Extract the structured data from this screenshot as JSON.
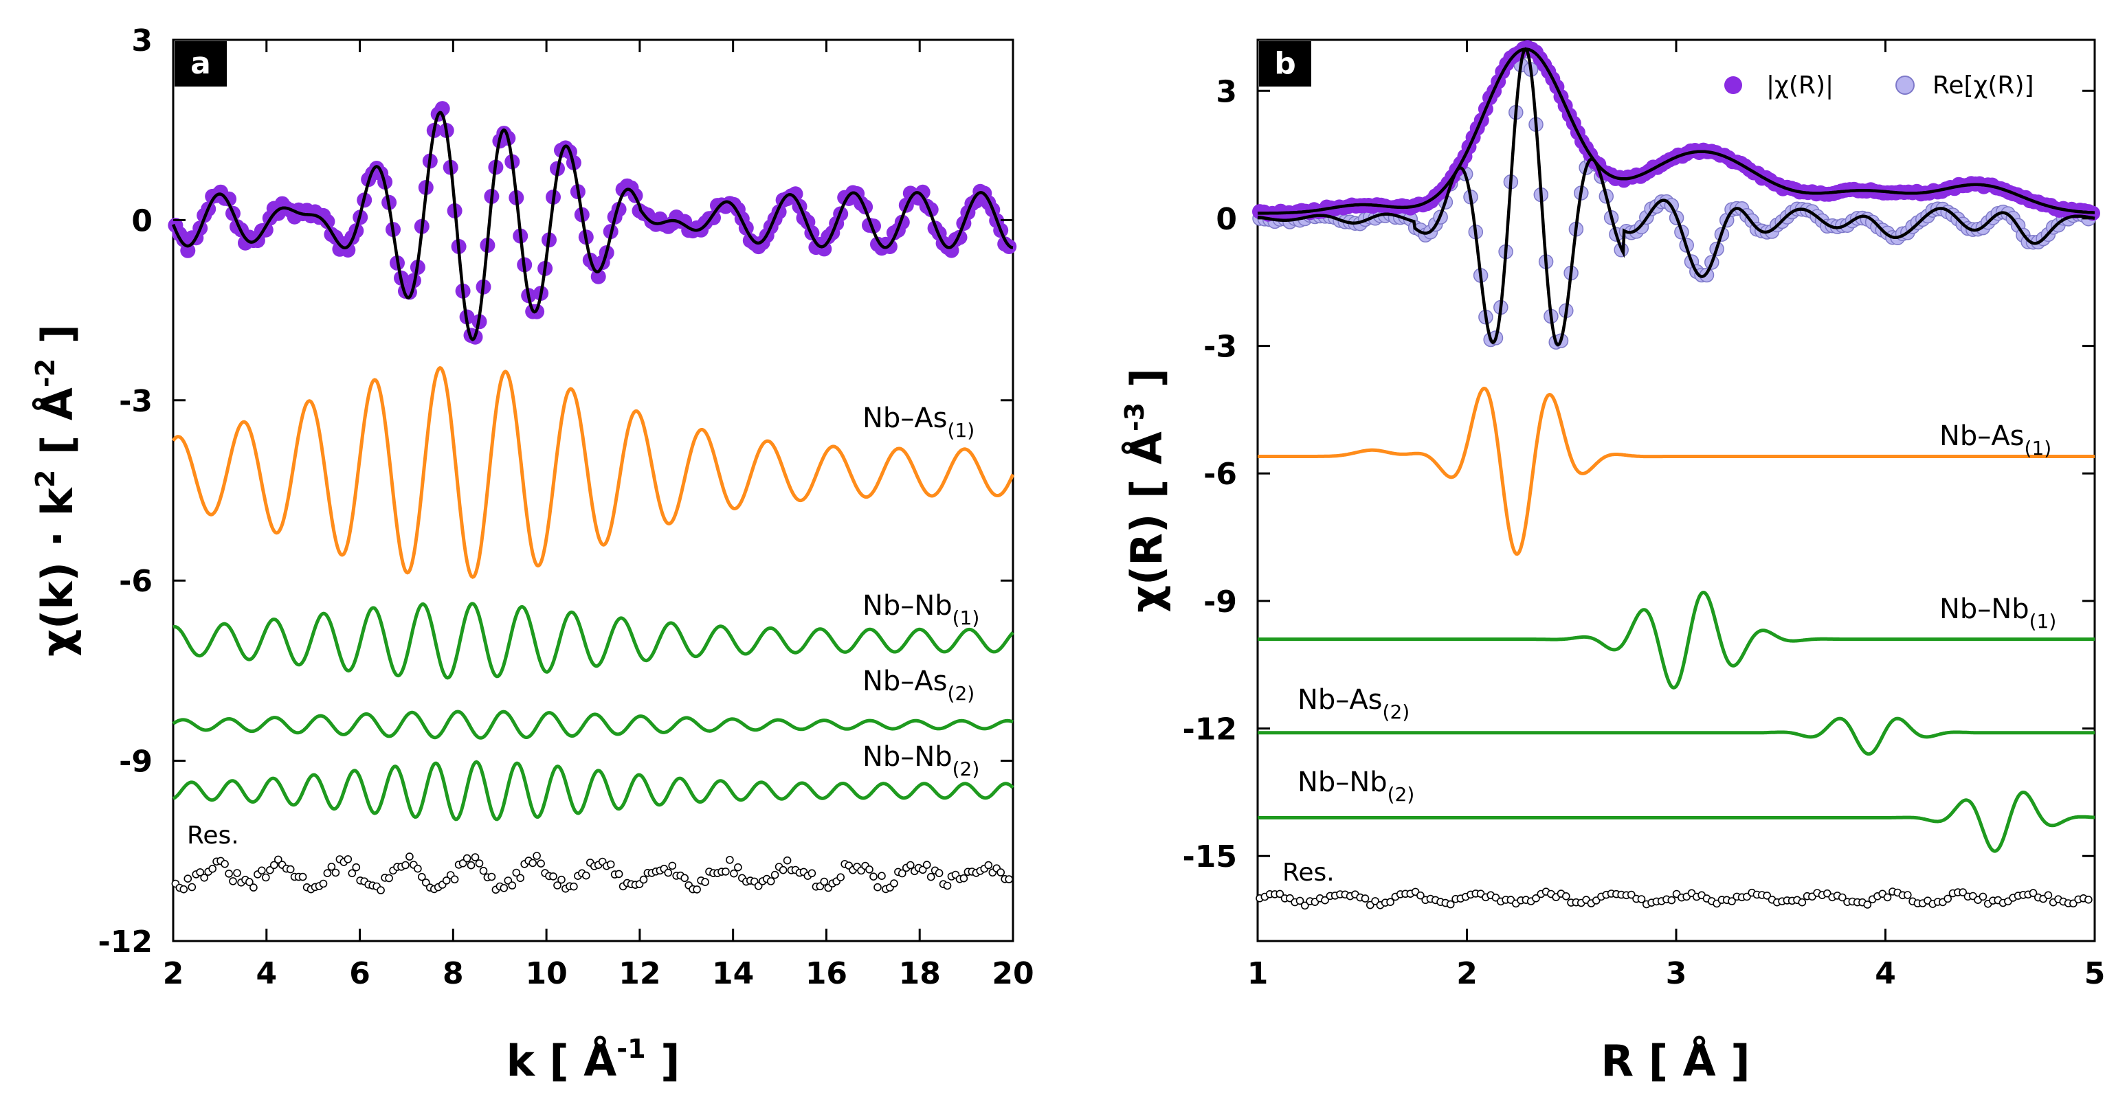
{
  "chart_data": [
    {
      "type": "line",
      "panel_label": "a",
      "xlabel": "k  [ Å",
      "xlabel_sup": "-1",
      "xlabel_tail": " ]",
      "ylabel": "χ(k) · k",
      "ylabel_sup1": "2",
      "ylabel_mid": "  [  Å",
      "ylabel_sup2": "-2",
      "ylabel_tail": " ]",
      "xlim": [
        2,
        20
      ],
      "ylim": [
        -12,
        3
      ],
      "xticks": [
        "2",
        "4",
        "6",
        "8",
        "10",
        "12",
        "14",
        "16",
        "18",
        "20"
      ],
      "yticks": [
        "3",
        "0",
        "-3",
        "-6",
        "-9",
        "-12"
      ],
      "series": [
        {
          "name": "data",
          "style": "markers",
          "color": "#8a2be2",
          "offset": 0
        },
        {
          "name": "fit",
          "style": "line",
          "color": "#000000",
          "offset": 0
        },
        {
          "name": "Nb–As(1)",
          "style": "line",
          "color": "#ff8c1a",
          "offset": -4.2
        },
        {
          "name": "Nb–Nb(1)",
          "style": "line",
          "color": "#1e9a1e",
          "offset": -7.0
        },
        {
          "name": "Nb–As(2)",
          "style": "line",
          "color": "#1e9a1e",
          "offset": -8.4
        },
        {
          "name": "Nb–Nb(2)",
          "style": "line",
          "color": "#1e9a1e",
          "offset": -9.5
        },
        {
          "name": "Res.",
          "style": "open-markers",
          "color": "#000000",
          "offset": -10.9
        }
      ],
      "annotations": [
        {
          "main": "Nb–As",
          "sub": "(1)"
        },
        {
          "main": "Nb–Nb",
          "sub": "(1)"
        },
        {
          "main": "Nb–As",
          "sub": "(2)"
        },
        {
          "main": "Nb–Nb",
          "sub": "(2)"
        }
      ],
      "res_label": "Res."
    },
    {
      "type": "line",
      "panel_label": "b",
      "xlabel": "R  [ Å ]",
      "ylabel": "χ(R)  [  Å",
      "ylabel_sup": "-3",
      "ylabel_tail": " ]",
      "xlim": [
        1,
        5
      ],
      "ylim": [
        -17,
        4.2
      ],
      "xticks": [
        "1",
        "2",
        "3",
        "4",
        "5"
      ],
      "yticks": [
        "3",
        "0",
        "-3",
        "-6",
        "-9",
        "-12",
        "-15"
      ],
      "legend": {
        "position": "top-right",
        "entries": [
          "|χ(R)|",
          "Re[χ(R)]"
        ]
      },
      "series": [
        {
          "name": "|χ(R)|",
          "style": "markers",
          "color": "#8a2be2",
          "offset": 0
        },
        {
          "name": "Re[χ(R)]",
          "style": "markers",
          "color": "#b8b4f0",
          "offset": 0
        },
        {
          "name": "fit",
          "style": "line",
          "color": "#000000",
          "offset": 0
        },
        {
          "name": "Nb–As(1)",
          "style": "line",
          "color": "#ff8c1a",
          "offset": -5.6
        },
        {
          "name": "Nb–Nb(1)",
          "style": "line",
          "color": "#1e9a1e",
          "offset": -9.9
        },
        {
          "name": "Nb–As(2)",
          "style": "line",
          "color": "#1e9a1e",
          "offset": -12.1
        },
        {
          "name": "Nb–Nb(2)",
          "style": "line",
          "color": "#1e9a1e",
          "offset": -14.1
        },
        {
          "name": "Res.",
          "style": "open-markers",
          "color": "#000000",
          "offset": -16.0
        }
      ],
      "annotations": [
        {
          "main": "Nb–As",
          "sub": "(1)"
        },
        {
          "main": "Nb–Nb",
          "sub": "(1)"
        },
        {
          "main": "Nb–As",
          "sub": "(2)"
        },
        {
          "main": "Nb–Nb",
          "sub": "(2)"
        }
      ],
      "res_label": "Res."
    }
  ]
}
